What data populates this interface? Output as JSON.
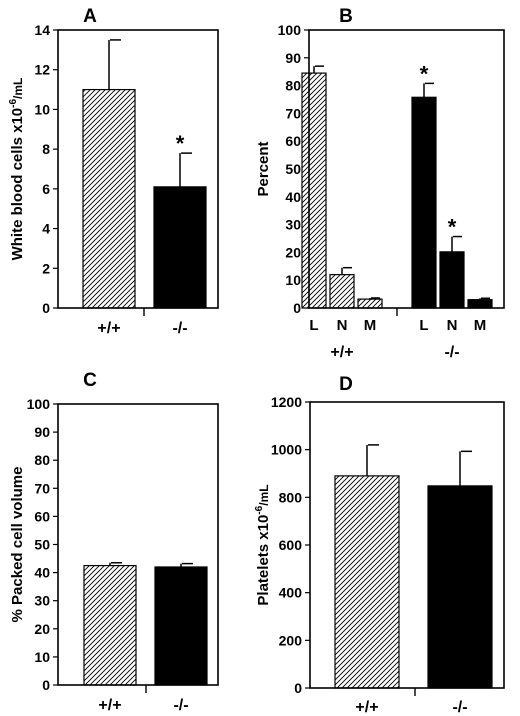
{
  "figure": {
    "background": "#ffffff",
    "ink": "#000000"
  },
  "chart_data": [
    {
      "type": "bar",
      "panel": "A",
      "ylabel": {
        "main": "White blood cells x10",
        "sup": "-6",
        "unit": "/mL"
      },
      "ylim": [
        0,
        14
      ],
      "yticks": [
        0,
        2,
        4,
        6,
        8,
        10,
        12,
        14
      ],
      "categories": [
        "+/+",
        "-/-"
      ],
      "values": [
        11.0,
        6.1
      ],
      "errors": [
        2.5,
        1.7
      ],
      "fills": [
        "hatched",
        "solid"
      ],
      "significance": [
        "",
        "*"
      ]
    },
    {
      "type": "bar",
      "panel": "B",
      "ylabel": "Percent",
      "ylim": [
        0,
        100
      ],
      "yticks": [
        0,
        10,
        20,
        30,
        40,
        50,
        60,
        70,
        80,
        90,
        100
      ],
      "groups": [
        "+/+",
        "-/-"
      ],
      "categories": [
        "L",
        "N",
        "M"
      ],
      "series": [
        {
          "group": "+/+",
          "fill": "hatched",
          "values": [
            84.5,
            12,
            3.2
          ],
          "errors": [
            2.5,
            2.5,
            0.4
          ],
          "significance": [
            "",
            "",
            ""
          ]
        },
        {
          "group": "-/-",
          "fill": "solid",
          "values": [
            75.8,
            20.2,
            3.0
          ],
          "errors": [
            5.0,
            5.5,
            0.5
          ],
          "significance": [
            "*",
            "*",
            ""
          ]
        }
      ]
    },
    {
      "type": "bar",
      "panel": "C",
      "ylabel": "% Packed cell volume",
      "ylim": [
        0,
        100
      ],
      "yticks": [
        0,
        10,
        20,
        30,
        40,
        50,
        60,
        70,
        80,
        90,
        100
      ],
      "categories": [
        "+/+",
        "-/-"
      ],
      "values": [
        42.5,
        42.0
      ],
      "errors": [
        1.0,
        1.2
      ],
      "fills": [
        "hatched",
        "solid"
      ],
      "significance": [
        "",
        ""
      ]
    },
    {
      "type": "bar",
      "panel": "D",
      "ylabel": {
        "main": "Platelets x10",
        "sup": "-6",
        "unit": "/mL"
      },
      "ylim": [
        0,
        1200
      ],
      "yticks": [
        0,
        200,
        400,
        600,
        800,
        1000,
        1200
      ],
      "categories": [
        "+/+",
        "-/-"
      ],
      "values": [
        890,
        848
      ],
      "errors": [
        130,
        145
      ],
      "fills": [
        "hatched",
        "solid"
      ],
      "significance": [
        "",
        ""
      ]
    }
  ]
}
